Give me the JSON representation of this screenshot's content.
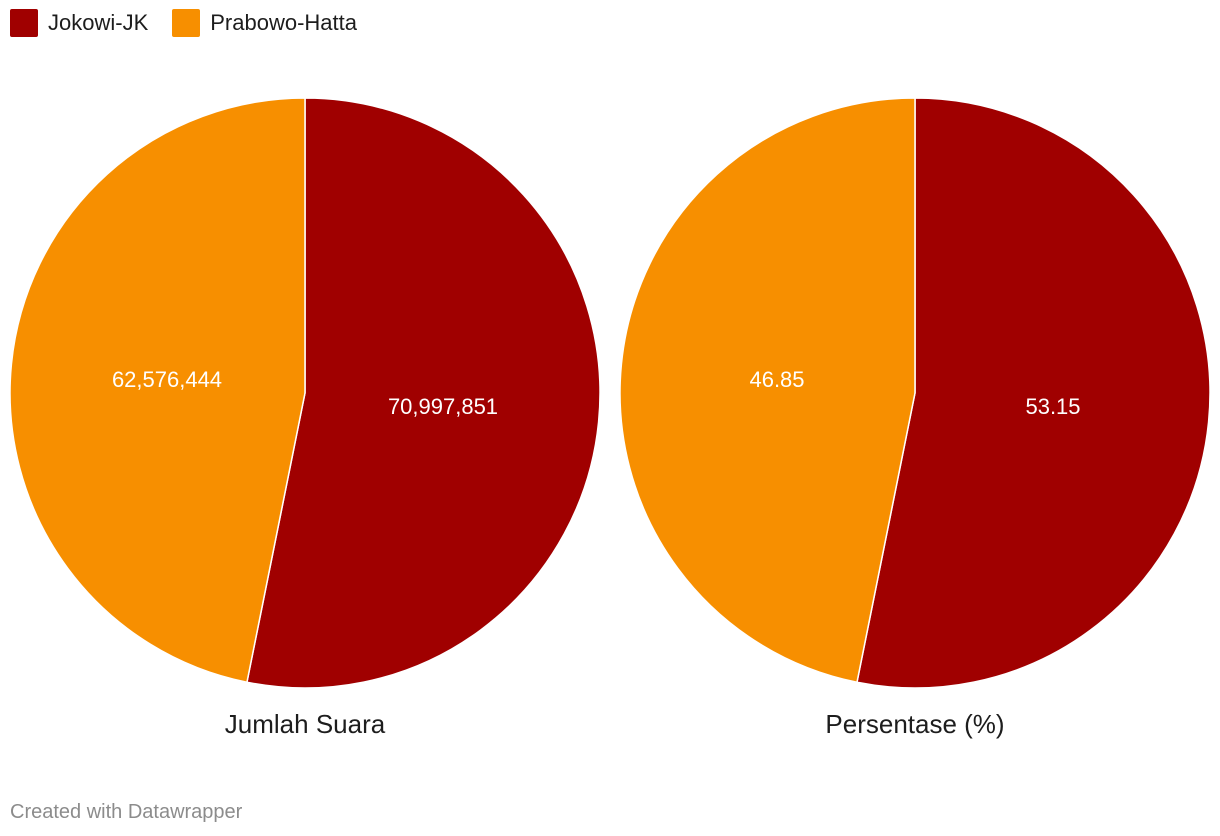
{
  "colors": {
    "jokowi": "#a00000",
    "prabowo": "#f78f00"
  },
  "legend": [
    {
      "label": "Jokowi-JK",
      "color": "#a00000"
    },
    {
      "label": "Prabowo-Hatta",
      "color": "#f78f00"
    }
  ],
  "chart_data": [
    {
      "type": "pie",
      "title": "Jumlah Suara",
      "slices": [
        {
          "name": "Jokowi-JK",
          "value": 70997851,
          "label": "70,997,851",
          "color": "#a00000"
        },
        {
          "name": "Prabowo-Hatta",
          "value": 62576444,
          "label": "62,576,444",
          "color": "#f78f00"
        }
      ]
    },
    {
      "type": "pie",
      "title": "Persentase (%)",
      "slices": [
        {
          "name": "Jokowi-JK",
          "value": 53.15,
          "label": "53.15",
          "color": "#a00000"
        },
        {
          "name": "Prabowo-Hatta",
          "value": 46.85,
          "label": "46.85",
          "color": "#f78f00"
        }
      ]
    }
  ],
  "footer": "Created with Datawrapper"
}
